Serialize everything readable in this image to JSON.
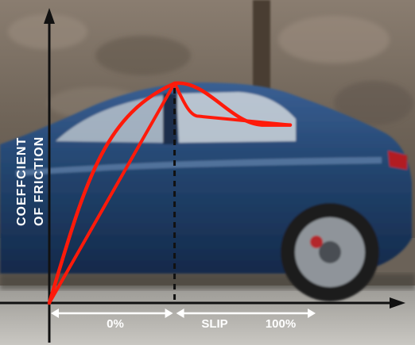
{
  "chart_data": {
    "type": "line",
    "ylabel_lines": [
      "COEFFCIENT",
      "OF FRICTION"
    ],
    "xlabel": "SLIP",
    "tick_labels": [
      "0%",
      "100%"
    ],
    "xlim": [
      0,
      100
    ],
    "ylim": [
      0,
      1
    ],
    "grid": false,
    "background": "car-photo",
    "series": [
      {
        "x": [
          0,
          52,
          100
        ],
        "values": [
          0,
          1,
          0.81
        ]
      },
      {
        "x": [
          0,
          52,
          62,
          100
        ],
        "values": [
          0,
          1,
          0.85,
          0.81
        ]
      }
    ],
    "peak_marker_x": 52,
    "colors": {
      "curve": "#ff1a0a",
      "axis": "#111111",
      "arrows": "#ffffff"
    }
  }
}
